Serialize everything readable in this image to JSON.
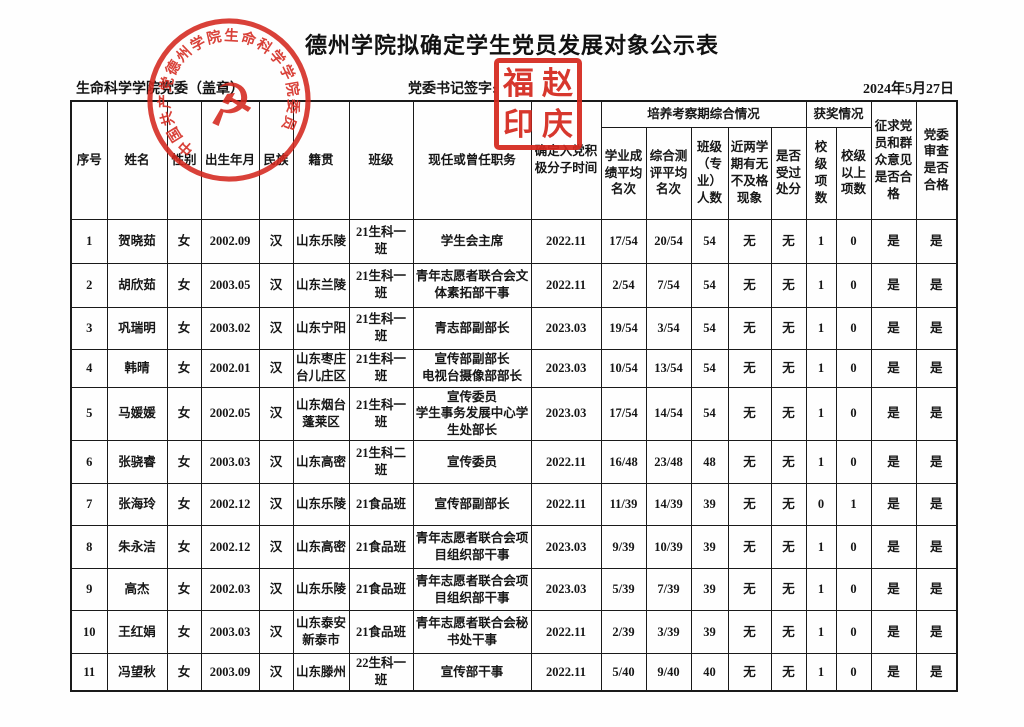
{
  "page": {
    "title": "德州学院拟确定学生党员发展对象公示表",
    "org_label": "生命科学学院党委（盖章）",
    "sign_label": "党委书记签字:",
    "date": "2024年5月27日"
  },
  "seals": {
    "circular": {
      "text": "中国共产党德州学院生命科学学院委员会",
      "symbol": "hammer-and-sickle",
      "symbol_glyph": "☭",
      "color": "#d5281e"
    },
    "square": {
      "chars": [
        "福",
        "赵",
        "印",
        "庆"
      ],
      "color": "#d5281e"
    }
  },
  "table": {
    "headers": {
      "index": "序号",
      "name": "姓名",
      "gender": "性别",
      "birth": "出生年月",
      "ethnicity": "民族",
      "native_place": "籍贯",
      "class": "班级",
      "position": "现任或曾任职务",
      "join_time": "确定入党积极分子时间",
      "group_training": "培养考察期综合情况",
      "academic_rank": "学业成绩平均名次",
      "comprehensive_rank": "综合测评平均名次",
      "class_size": "班级（专业）人数",
      "fail_record": "近两学期有无不及格现象",
      "punishment": "是否受过处分",
      "group_awards": "获奖情况",
      "school_awards": "校级项数",
      "above_school_awards": "校级以上项数",
      "opinion_qualified": "征求党员和群众意见是否合格",
      "committee_qualified": "党委审查是否合格"
    },
    "column_keys": [
      "index",
      "name",
      "gender",
      "birth",
      "ethnicity",
      "native_place",
      "class",
      "position",
      "join_time",
      "academic_rank",
      "comprehensive_rank",
      "class_size",
      "fail_record",
      "punishment",
      "school_awards",
      "above_school_awards",
      "opinion_qualified",
      "committee_qualified"
    ],
    "rows": [
      [
        "1",
        "贺晓茹",
        "女",
        "2002.09",
        "汉",
        "山东乐陵",
        "21生科一班",
        "学生会主席",
        "2022.11",
        "17/54",
        "20/54",
        "54",
        "无",
        "无",
        "1",
        "0",
        "是",
        "是"
      ],
      [
        "2",
        "胡欣茹",
        "女",
        "2003.05",
        "汉",
        "山东兰陵",
        "21生科一班",
        "青年志愿者联合会文体素拓部干事",
        "2022.11",
        "2/54",
        "7/54",
        "54",
        "无",
        "无",
        "1",
        "0",
        "是",
        "是"
      ],
      [
        "3",
        "巩瑞明",
        "女",
        "2003.02",
        "汉",
        "山东宁阳",
        "21生科一班",
        "青志部副部长",
        "2023.03",
        "19/54",
        "3/54",
        "54",
        "无",
        "无",
        "1",
        "0",
        "是",
        "是"
      ],
      [
        "4",
        "韩晴",
        "女",
        "2002.01",
        "汉",
        "山东枣庄台儿庄区",
        "21生科一班",
        "宣传部副部长\n电视台摄像部部长",
        "2023.03",
        "10/54",
        "13/54",
        "54",
        "无",
        "无",
        "1",
        "0",
        "是",
        "是"
      ],
      [
        "5",
        "马媛媛",
        "女",
        "2002.05",
        "汉",
        "山东烟台蓬莱区",
        "21生科一班",
        "宣传委员\n学生事务发展中心学生处部长",
        "2023.03",
        "17/54",
        "14/54",
        "54",
        "无",
        "无",
        "1",
        "0",
        "是",
        "是"
      ],
      [
        "6",
        "张骁睿",
        "女",
        "2003.03",
        "汉",
        "山东高密",
        "21生科二班",
        "宣传委员",
        "2022.11",
        "16/48",
        "23/48",
        "48",
        "无",
        "无",
        "1",
        "0",
        "是",
        "是"
      ],
      [
        "7",
        "张海玲",
        "女",
        "2002.12",
        "汉",
        "山东乐陵",
        "21食品班",
        "宣传部副部长",
        "2022.11",
        "11/39",
        "14/39",
        "39",
        "无",
        "无",
        "0",
        "1",
        "是",
        "是"
      ],
      [
        "8",
        "朱永洁",
        "女",
        "2002.12",
        "汉",
        "山东高密",
        "21食品班",
        "青年志愿者联合会项目组织部干事",
        "2023.03",
        "9/39",
        "10/39",
        "39",
        "无",
        "无",
        "1",
        "0",
        "是",
        "是"
      ],
      [
        "9",
        "高杰",
        "女",
        "2002.03",
        "汉",
        "山东乐陵",
        "21食品班",
        "青年志愿者联合会项目组织部干事",
        "2023.03",
        "5/39",
        "7/39",
        "39",
        "无",
        "无",
        "1",
        "0",
        "是",
        "是"
      ],
      [
        "10",
        "王红娟",
        "女",
        "2003.03",
        "汉",
        "山东泰安新泰市",
        "21食品班",
        "青年志愿者联合会秘书处干事",
        "2022.11",
        "2/39",
        "3/39",
        "39",
        "无",
        "无",
        "1",
        "0",
        "是",
        "是"
      ],
      [
        "11",
        "冯望秋",
        "女",
        "2003.09",
        "汉",
        "山东滕州",
        "22生科一班",
        "宣传部干事",
        "2022.11",
        "5/40",
        "9/40",
        "40",
        "无",
        "无",
        "1",
        "0",
        "是",
        "是"
      ]
    ]
  }
}
